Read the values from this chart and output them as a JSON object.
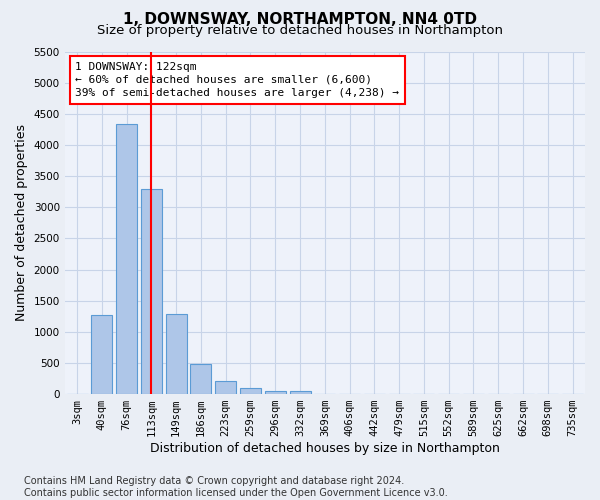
{
  "title": "1, DOWNSWAY, NORTHAMPTON, NN4 0TD",
  "subtitle": "Size of property relative to detached houses in Northampton",
  "xlabel": "Distribution of detached houses by size in Northampton",
  "ylabel": "Number of detached properties",
  "categories": [
    "3sqm",
    "40sqm",
    "76sqm",
    "113sqm",
    "149sqm",
    "186sqm",
    "223sqm",
    "259sqm",
    "296sqm",
    "332sqm",
    "369sqm",
    "406sqm",
    "442sqm",
    "479sqm",
    "515sqm",
    "552sqm",
    "589sqm",
    "625sqm",
    "662sqm",
    "698sqm",
    "735sqm"
  ],
  "bar_values": [
    0,
    1270,
    4330,
    3300,
    1290,
    490,
    215,
    90,
    55,
    55,
    0,
    0,
    0,
    0,
    0,
    0,
    0,
    0,
    0,
    0,
    0
  ],
  "bar_color": "#aec6e8",
  "bar_edge_color": "#5b9bd5",
  "vline_x": 3,
  "vline_color": "red",
  "annotation_line1": "1 DOWNSWAY: 122sqm",
  "annotation_line2": "← 60% of detached houses are smaller (6,600)",
  "annotation_line3": "39% of semi-detached houses are larger (4,238) →",
  "annotation_box_color": "white",
  "annotation_box_edge_color": "red",
  "ylim": [
    0,
    5500
  ],
  "yticks": [
    0,
    500,
    1000,
    1500,
    2000,
    2500,
    3000,
    3500,
    4000,
    4500,
    5000,
    5500
  ],
  "footer_text": "Contains HM Land Registry data © Crown copyright and database right 2024.\nContains public sector information licensed under the Open Government Licence v3.0.",
  "bg_color": "#eaeef5",
  "plot_bg_color": "#eef2fa",
  "grid_color": "#c8d4e8",
  "title_fontsize": 11,
  "subtitle_fontsize": 9.5,
  "axis_label_fontsize": 9,
  "tick_fontsize": 7.5,
  "annotation_fontsize": 8,
  "footer_fontsize": 7
}
